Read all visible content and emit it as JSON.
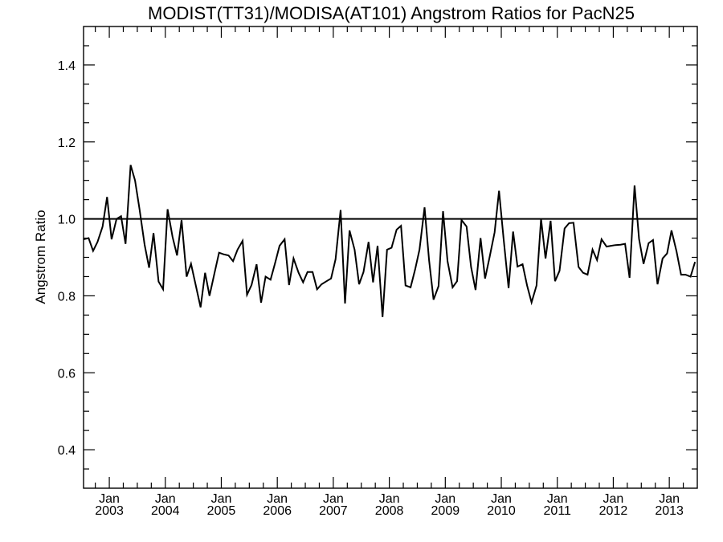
{
  "chart_data": {
    "type": "line",
    "title": "MODIST(TT31)/MODISA(AT101)  Angstrom Ratios for PacN25",
    "xlabel": "",
    "ylabel": "Angstrom Ratio",
    "ylim": [
      0.3,
      1.5
    ],
    "y_ticks": [
      "0.4",
      "0.6",
      "0.8",
      "1.0",
      "1.2",
      "1.4"
    ],
    "x_range_years": [
      2002.54,
      2013.5
    ],
    "x_ticks": [
      {
        "month": "Jan",
        "year": "2003"
      },
      {
        "month": "Jan",
        "year": "2004"
      },
      {
        "month": "Jan",
        "year": "2005"
      },
      {
        "month": "Jan",
        "year": "2006"
      },
      {
        "month": "Jan",
        "year": "2007"
      },
      {
        "month": "Jan",
        "year": "2008"
      },
      {
        "month": "Jan",
        "year": "2009"
      },
      {
        "month": "Jan",
        "year": "2010"
      },
      {
        "month": "Jan",
        "year": "2011"
      },
      {
        "month": "Jan",
        "year": "2012"
      },
      {
        "month": "Jan",
        "year": "2013"
      }
    ],
    "reference_line": 1.0,
    "grid": false,
    "series": [
      {
        "color": "#000000",
        "points": [
          [
            2002.54,
            0.947
          ],
          [
            2002.63,
            0.95
          ],
          [
            2002.71,
            0.917
          ],
          [
            2002.79,
            0.94
          ],
          [
            2002.88,
            0.98
          ],
          [
            2002.96,
            1.057
          ],
          [
            2003.04,
            0.947
          ],
          [
            2003.13,
            1.0
          ],
          [
            2003.21,
            1.007
          ],
          [
            2003.29,
            0.935
          ],
          [
            2003.38,
            1.14
          ],
          [
            2003.46,
            1.1
          ],
          [
            2003.54,
            1.025
          ],
          [
            2003.63,
            0.933
          ],
          [
            2003.71,
            0.873
          ],
          [
            2003.79,
            0.963
          ],
          [
            2003.88,
            0.837
          ],
          [
            2003.96,
            0.817
          ],
          [
            2004.04,
            1.025
          ],
          [
            2004.13,
            0.953
          ],
          [
            2004.21,
            0.905
          ],
          [
            2004.29,
            0.997
          ],
          [
            2004.38,
            0.85
          ],
          [
            2004.46,
            0.883
          ],
          [
            2004.54,
            0.83
          ],
          [
            2004.63,
            0.77
          ],
          [
            2004.71,
            0.86
          ],
          [
            2004.79,
            0.8
          ],
          [
            2004.88,
            0.86
          ],
          [
            2004.96,
            0.912
          ],
          [
            2005.04,
            0.908
          ],
          [
            2005.13,
            0.905
          ],
          [
            2005.21,
            0.89
          ],
          [
            2005.29,
            0.92
          ],
          [
            2005.38,
            0.943
          ],
          [
            2005.46,
            0.803
          ],
          [
            2005.54,
            0.828
          ],
          [
            2005.63,
            0.882
          ],
          [
            2005.71,
            0.782
          ],
          [
            2005.79,
            0.85
          ],
          [
            2005.88,
            0.842
          ],
          [
            2005.96,
            0.885
          ],
          [
            2006.04,
            0.93
          ],
          [
            2006.13,
            0.947
          ],
          [
            2006.21,
            0.828
          ],
          [
            2006.29,
            0.897
          ],
          [
            2006.38,
            0.86
          ],
          [
            2006.46,
            0.835
          ],
          [
            2006.54,
            0.862
          ],
          [
            2006.63,
            0.862
          ],
          [
            2006.71,
            0.817
          ],
          [
            2006.79,
            0.83
          ],
          [
            2006.88,
            0.838
          ],
          [
            2006.96,
            0.845
          ],
          [
            2007.04,
            0.895
          ],
          [
            2007.13,
            1.023
          ],
          [
            2007.21,
            0.78
          ],
          [
            2007.29,
            0.97
          ],
          [
            2007.38,
            0.92
          ],
          [
            2007.46,
            0.83
          ],
          [
            2007.54,
            0.862
          ],
          [
            2007.63,
            0.94
          ],
          [
            2007.71,
            0.835
          ],
          [
            2007.79,
            0.93
          ],
          [
            2007.88,
            0.745
          ],
          [
            2007.96,
            0.92
          ],
          [
            2008.04,
            0.925
          ],
          [
            2008.13,
            0.972
          ],
          [
            2008.21,
            0.982
          ],
          [
            2008.29,
            0.827
          ],
          [
            2008.38,
            0.822
          ],
          [
            2008.46,
            0.868
          ],
          [
            2008.54,
            0.92
          ],
          [
            2008.63,
            1.03
          ],
          [
            2008.71,
            0.893
          ],
          [
            2008.79,
            0.79
          ],
          [
            2008.88,
            0.825
          ],
          [
            2008.96,
            1.02
          ],
          [
            2009.04,
            0.89
          ],
          [
            2009.13,
            0.822
          ],
          [
            2009.21,
            0.838
          ],
          [
            2009.29,
            0.997
          ],
          [
            2009.38,
            0.98
          ],
          [
            2009.46,
            0.875
          ],
          [
            2009.54,
            0.815
          ],
          [
            2009.63,
            0.95
          ],
          [
            2009.71,
            0.845
          ],
          [
            2009.79,
            0.9
          ],
          [
            2009.88,
            0.965
          ],
          [
            2009.96,
            1.073
          ],
          [
            2010.04,
            0.95
          ],
          [
            2010.13,
            0.82
          ],
          [
            2010.21,
            0.967
          ],
          [
            2010.29,
            0.876
          ],
          [
            2010.38,
            0.882
          ],
          [
            2010.46,
            0.827
          ],
          [
            2010.54,
            0.783
          ],
          [
            2010.63,
            0.827
          ],
          [
            2010.71,
            1.0
          ],
          [
            2010.79,
            0.897
          ],
          [
            2010.88,
            0.995
          ],
          [
            2010.96,
            0.838
          ],
          [
            2011.04,
            0.865
          ],
          [
            2011.13,
            0.975
          ],
          [
            2011.21,
            0.989
          ],
          [
            2011.29,
            0.99
          ],
          [
            2011.38,
            0.875
          ],
          [
            2011.46,
            0.86
          ],
          [
            2011.54,
            0.855
          ],
          [
            2011.63,
            0.92
          ],
          [
            2011.71,
            0.893
          ],
          [
            2011.79,
            0.947
          ],
          [
            2011.88,
            0.928
          ],
          [
            2011.96,
            0.93
          ],
          [
            2012.04,
            0.932
          ],
          [
            2012.13,
            0.933
          ],
          [
            2012.21,
            0.935
          ],
          [
            2012.29,
            0.847
          ],
          [
            2012.38,
            1.087
          ],
          [
            2012.46,
            0.948
          ],
          [
            2012.54,
            0.883
          ],
          [
            2012.63,
            0.937
          ],
          [
            2012.71,
            0.945
          ],
          [
            2012.79,
            0.83
          ],
          [
            2012.88,
            0.897
          ],
          [
            2012.96,
            0.91
          ],
          [
            2013.04,
            0.97
          ],
          [
            2013.13,
            0.915
          ],
          [
            2013.21,
            0.855
          ],
          [
            2013.29,
            0.855
          ],
          [
            2013.38,
            0.85
          ],
          [
            2013.46,
            0.888
          ]
        ]
      }
    ]
  }
}
